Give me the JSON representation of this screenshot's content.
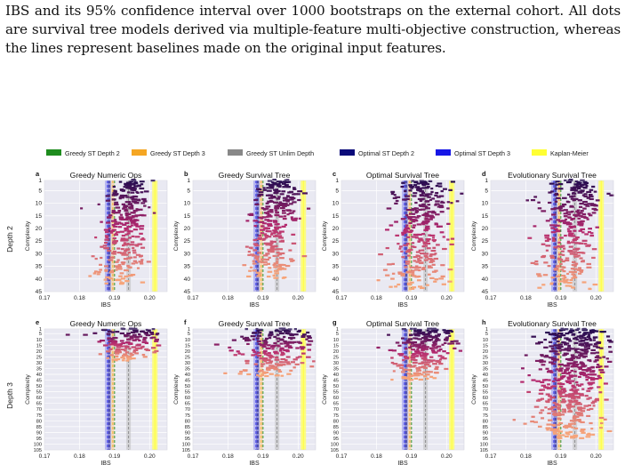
{
  "caption": "IBS and its 95% confidence interval over 1000 bootstraps on the external cohort. All dots are survival tree models derived via multiple-feature multi-objective construction, whereas the lines represent baselines made on the original input features.",
  "legend": [
    {
      "label": "Greedy ST Depth 2",
      "color": "#1e8c1e"
    },
    {
      "label": "Greedy ST Depth 3",
      "color": "#f5a623"
    },
    {
      "label": "Greedy ST Unlim Depth",
      "color": "#888888"
    },
    {
      "label": "Optimal ST Depth 2",
      "color": "#0b0b7a"
    },
    {
      "label": "Optimal ST Depth 3",
      "color": "#1616e6"
    },
    {
      "label": "Kaplan-Meier",
      "color": "#ffff33"
    }
  ],
  "row_labels": [
    "Depth 2",
    "Depth 3"
  ],
  "colors": {
    "plot_bg": "#e9e9f2",
    "grid": "#ffffff",
    "dot_top": "#1d0b4f",
    "dot_bottom": "#f6a47a"
  },
  "chart_data": [
    {
      "panel": "a",
      "type": "scatter",
      "title": "Greedy Numeric Ops",
      "xlabel": "IBS",
      "ylabel": "Complexity",
      "xlim": [
        0.17,
        0.205
      ],
      "xticks": [
        "0.17",
        "0.18",
        "0.19",
        "0.20"
      ],
      "ylim": [
        45,
        1
      ],
      "yticks": [
        "1",
        "5",
        "10",
        "15",
        "20",
        "25",
        "30",
        "35",
        "40",
        "45"
      ],
      "cloud": {
        "center": 0.191,
        "spread_top": 0.006,
        "spread_bottom": 0.006,
        "max_complexity": 42,
        "top_shift": 0.004
      },
      "baselines": {
        "greedy_d2": 0.19,
        "greedy_d3": 0.1895,
        "greedy_unlim": 0.194,
        "optimal_d2": 0.1885,
        "optimal_d3": 0.188,
        "kaplan_meier": 0.2015
      }
    },
    {
      "panel": "b",
      "type": "scatter",
      "title": "Greedy Survival Tree",
      "xlabel": "IBS",
      "ylabel": "Complexity",
      "xlim": [
        0.17,
        0.205
      ],
      "xticks": [
        "0.17",
        "0.18",
        "0.19",
        "0.20"
      ],
      "ylim": [
        45,
        1
      ],
      "yticks": [
        "1",
        "5",
        "10",
        "15",
        "20",
        "25",
        "30",
        "35",
        "40",
        "45"
      ],
      "cloud": {
        "center": 0.191,
        "spread_top": 0.006,
        "spread_bottom": 0.006,
        "max_complexity": 40,
        "top_shift": 0.004
      },
      "baselines": {
        "greedy_d2": 0.19,
        "greedy_d3": 0.1895,
        "greedy_unlim": 0.194,
        "optimal_d2": 0.1885,
        "optimal_d3": 0.188,
        "kaplan_meier": 0.2015
      }
    },
    {
      "panel": "c",
      "type": "scatter",
      "title": "Optimal Survival Tree",
      "xlabel": "IBS",
      "ylabel": "Complexity",
      "xlim": [
        0.17,
        0.205
      ],
      "xticks": [
        "0.17",
        "0.18",
        "0.19",
        "0.20"
      ],
      "ylim": [
        45,
        1
      ],
      "yticks": [
        "1",
        "5",
        "10",
        "15",
        "20",
        "25",
        "30",
        "35",
        "40",
        "45"
      ],
      "cloud": {
        "center": 0.191,
        "spread_top": 0.007,
        "spread_bottom": 0.008,
        "max_complexity": 44,
        "top_shift": 0.003
      },
      "baselines": {
        "greedy_d2": 0.19,
        "greedy_d3": 0.1895,
        "greedy_unlim": 0.194,
        "optimal_d2": 0.1885,
        "optimal_d3": 0.188,
        "kaplan_meier": 0.2015
      }
    },
    {
      "panel": "d",
      "type": "scatter",
      "title": "Evolutionary Survival Tree",
      "xlabel": "IBS",
      "ylabel": "Complexity",
      "xlim": [
        0.17,
        0.205
      ],
      "xticks": [
        "0.17",
        "0.18",
        "0.19",
        "0.20"
      ],
      "ylim": [
        45,
        1
      ],
      "yticks": [
        "1",
        "5",
        "10",
        "15",
        "20",
        "25",
        "30",
        "35",
        "40",
        "45"
      ],
      "cloud": {
        "center": 0.191,
        "spread_top": 0.008,
        "spread_bottom": 0.008,
        "max_complexity": 44,
        "top_shift": 0.004
      },
      "baselines": {
        "greedy_d2": 0.19,
        "greedy_d3": 0.1895,
        "greedy_unlim": 0.194,
        "optimal_d2": 0.1885,
        "optimal_d3": 0.188,
        "kaplan_meier": 0.2015
      }
    },
    {
      "panel": "e",
      "type": "scatter",
      "title": "Greedy Numeric Ops",
      "xlabel": "IBS",
      "ylabel": "Complexity",
      "xlim": [
        0.17,
        0.205
      ],
      "xticks": [
        "0.17",
        "0.18",
        "0.19",
        "0.20"
      ],
      "ylim": [
        105,
        1
      ],
      "yticks": [
        "1",
        "5",
        "10",
        "15",
        "20",
        "25",
        "30",
        "35",
        "40",
        "45",
        "50",
        "55",
        "60",
        "65",
        "70",
        "75",
        "80",
        "85",
        "90",
        "95",
        "100",
        "105"
      ],
      "cloud": {
        "center": 0.192,
        "spread_top": 0.012,
        "spread_bottom": 0.005,
        "max_complexity": 28,
        "top_shift": 0.004
      },
      "baselines": {
        "greedy_d2": 0.19,
        "greedy_d3": 0.1895,
        "greedy_unlim": 0.194,
        "optimal_d2": 0.1885,
        "optimal_d3": 0.188,
        "kaplan_meier": 0.2015
      }
    },
    {
      "panel": "f",
      "type": "scatter",
      "title": "Greedy Survival Tree",
      "xlabel": "IBS",
      "ylabel": "Complexity",
      "xlim": [
        0.17,
        0.205
      ],
      "xticks": [
        "0.17",
        "0.18",
        "0.19",
        "0.20"
      ],
      "ylim": [
        105,
        1
      ],
      "yticks": [
        "1",
        "5",
        "10",
        "15",
        "20",
        "25",
        "30",
        "35",
        "40",
        "45",
        "50",
        "55",
        "60",
        "65",
        "70",
        "75",
        "80",
        "85",
        "90",
        "95",
        "100",
        "105"
      ],
      "cloud": {
        "center": 0.191,
        "spread_top": 0.012,
        "spread_bottom": 0.008,
        "max_complexity": 42,
        "top_shift": 0.004
      },
      "baselines": {
        "greedy_d2": 0.19,
        "greedy_d3": 0.1895,
        "greedy_unlim": 0.194,
        "optimal_d2": 0.1885,
        "optimal_d3": 0.188,
        "kaplan_meier": 0.2015
      }
    },
    {
      "panel": "g",
      "type": "scatter",
      "title": "Optimal Survival Tree",
      "xlabel": "IBS",
      "ylabel": "Complexity",
      "xlim": [
        0.17,
        0.205
      ],
      "xticks": [
        "0.17",
        "0.18",
        "0.19",
        "0.20"
      ],
      "ylim": [
        105,
        1
      ],
      "yticks": [
        "1",
        "5",
        "10",
        "15",
        "20",
        "25",
        "30",
        "35",
        "40",
        "45",
        "50",
        "55",
        "60",
        "65",
        "70",
        "75",
        "80",
        "85",
        "90",
        "95",
        "100",
        "105"
      ],
      "cloud": {
        "center": 0.191,
        "spread_top": 0.009,
        "spread_bottom": 0.006,
        "max_complexity": 45,
        "top_shift": 0.004
      },
      "baselines": {
        "greedy_d2": 0.19,
        "greedy_d3": 0.1895,
        "greedy_unlim": 0.194,
        "optimal_d2": 0.1885,
        "optimal_d3": 0.188,
        "kaplan_meier": 0.2015
      }
    },
    {
      "panel": "h",
      "type": "scatter",
      "title": "Evolutionary Survival Tree",
      "xlabel": "IBS",
      "ylabel": "Complexity",
      "xlim": [
        0.17,
        0.205
      ],
      "xticks": [
        "0.17",
        "0.18",
        "0.19",
        "0.20"
      ],
      "ylim": [
        105,
        1
      ],
      "yticks": [
        "1",
        "5",
        "10",
        "15",
        "20",
        "25",
        "30",
        "35",
        "40",
        "45",
        "50",
        "55",
        "60",
        "65",
        "70",
        "75",
        "80",
        "85",
        "90",
        "95",
        "100",
        "105"
      ],
      "cloud": {
        "center": 0.191,
        "spread_top": 0.011,
        "spread_bottom": 0.008,
        "max_complexity": 95,
        "top_shift": 0.004
      },
      "baselines": {
        "greedy_d2": 0.19,
        "greedy_d3": 0.1895,
        "greedy_unlim": 0.194,
        "optimal_d2": 0.1885,
        "optimal_d3": 0.188,
        "kaplan_meier": 0.2015
      }
    }
  ]
}
